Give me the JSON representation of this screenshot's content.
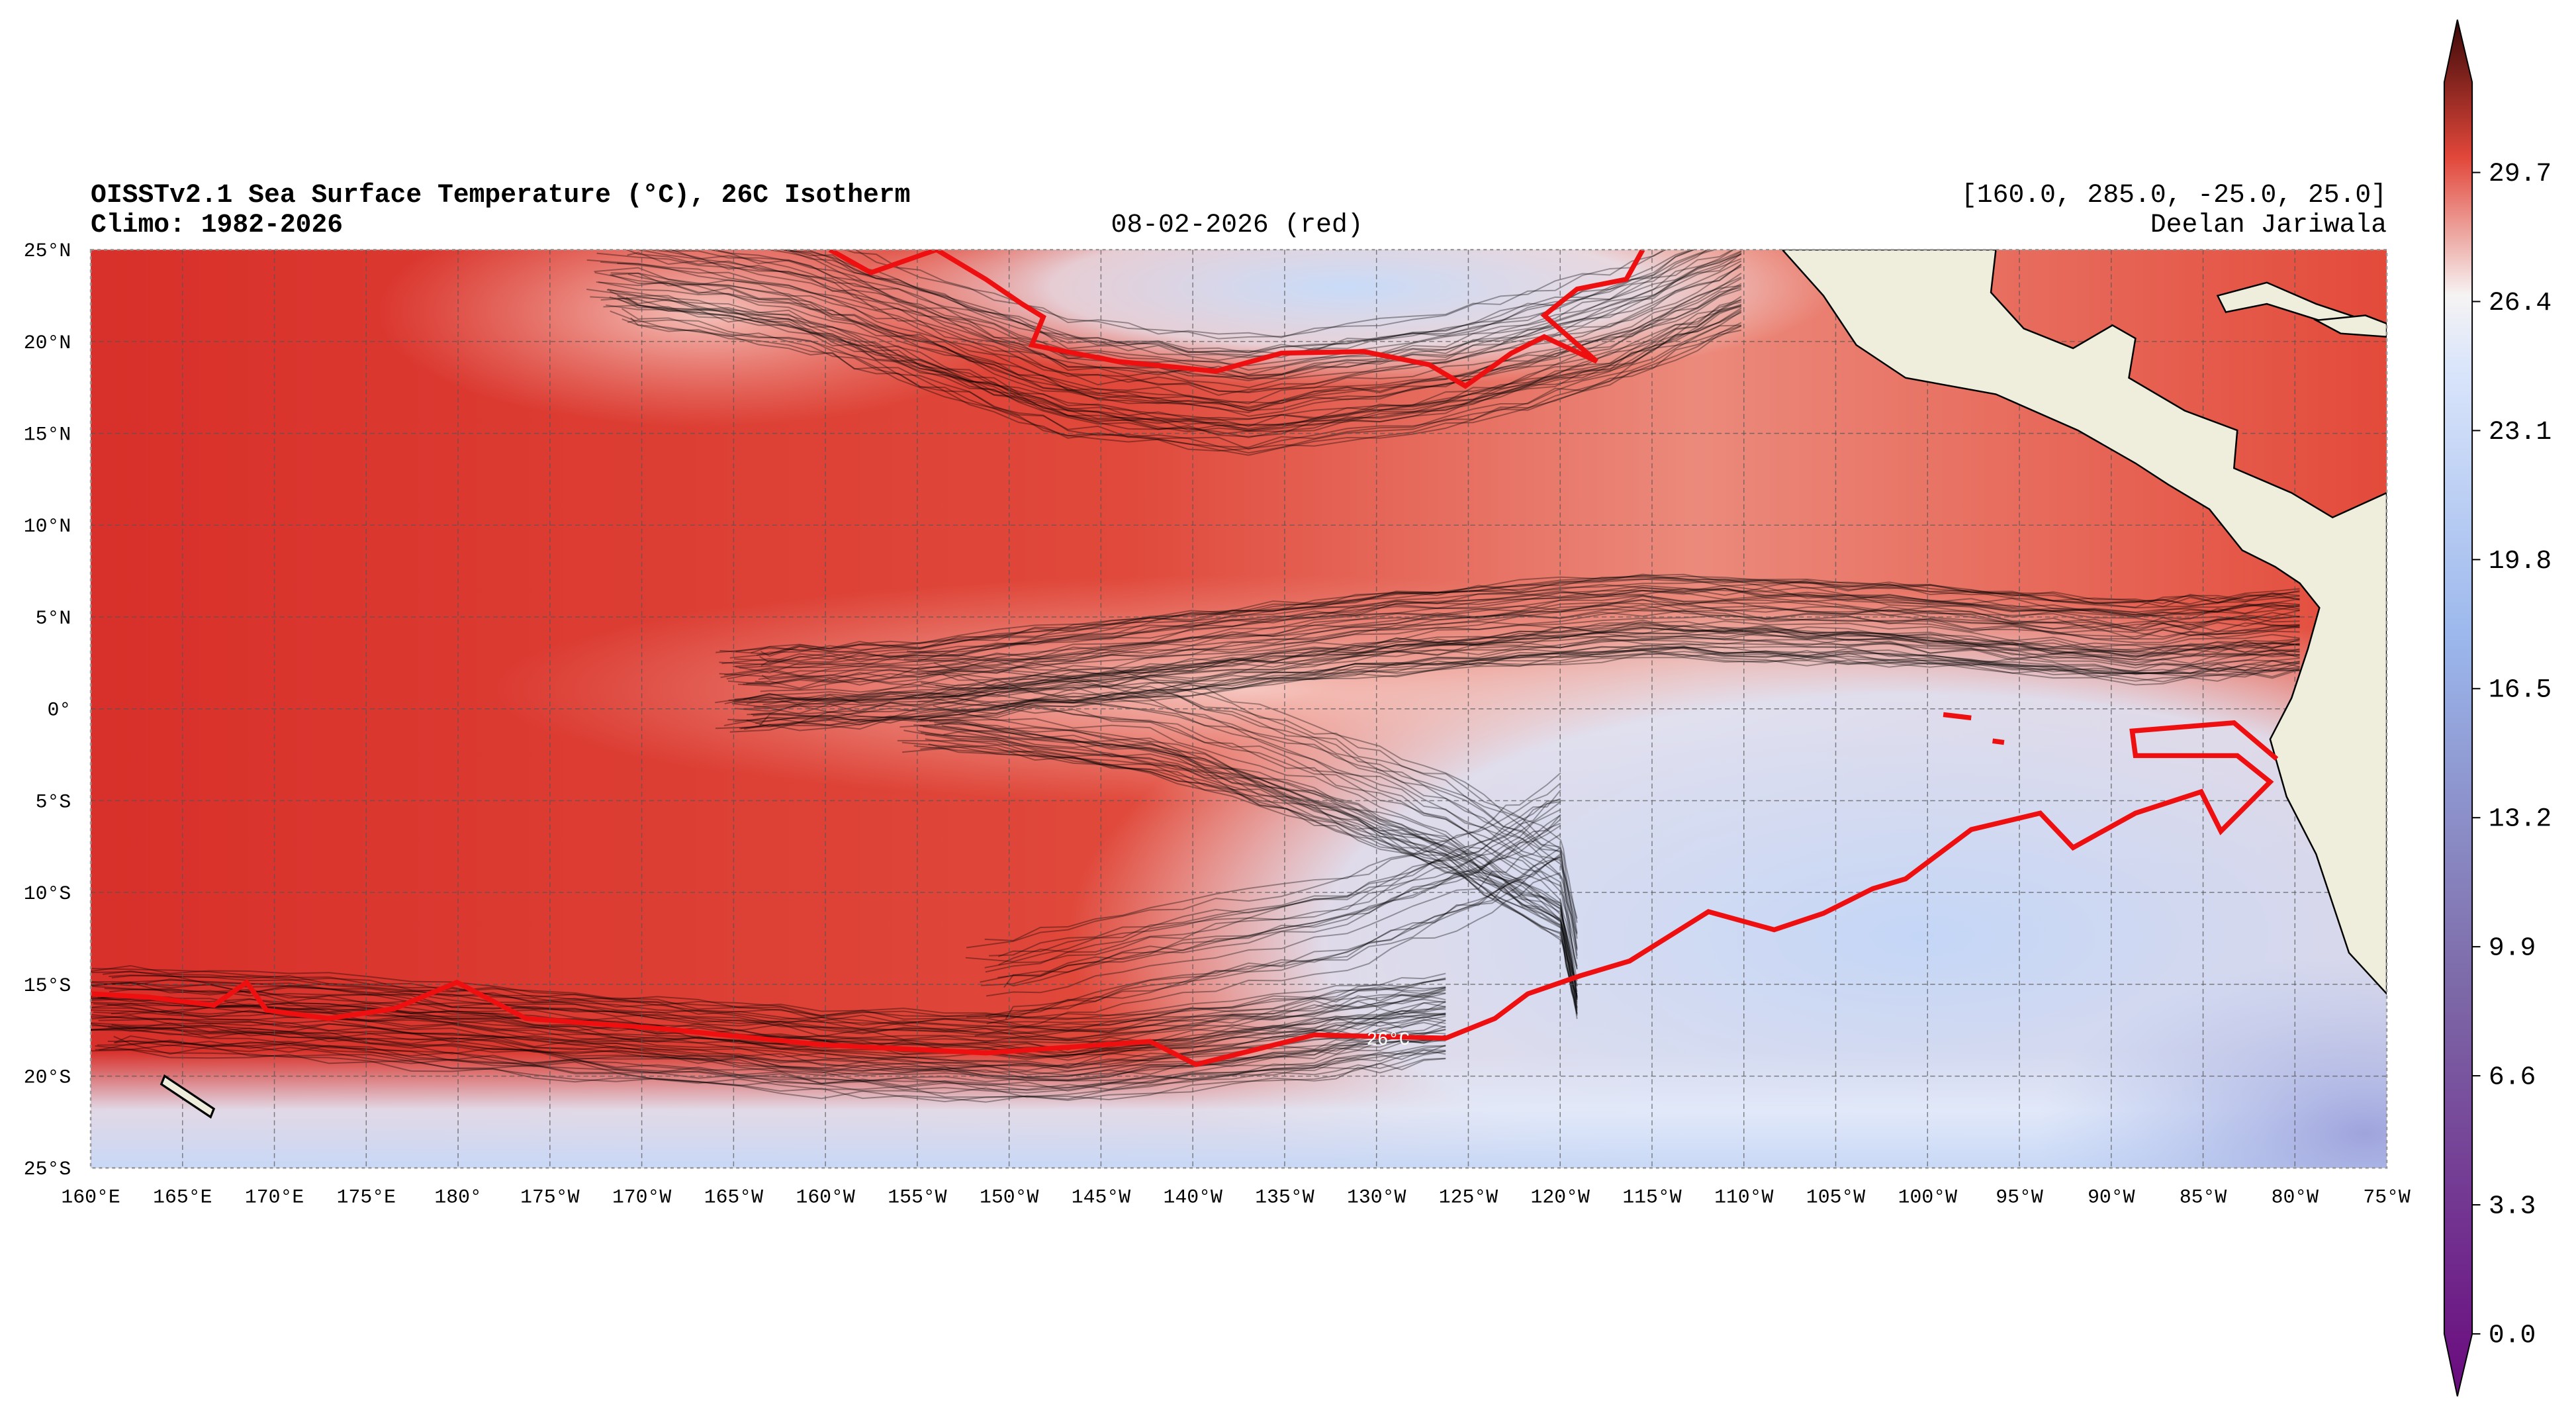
{
  "header": {
    "title": "OISSTv2.1 Sea Surface Temperature (°C), 26C Isotherm",
    "subtitle": "Climo: 1982-2026",
    "date": "08-02-2026 (red)",
    "extent": "[160.0, 285.0, -25.0, 25.0]",
    "author": "Deelan Jariwala"
  },
  "map": {
    "lat_labels": [
      "25°N",
      "20°N",
      "15°N",
      "10°N",
      "5°N",
      "0°",
      "5°S",
      "10°S",
      "15°S",
      "20°S",
      "25°S"
    ],
    "lon_labels": [
      "160°E",
      "165°E",
      "170°E",
      "175°E",
      "180°",
      "175°W",
      "170°W",
      "165°W",
      "160°W",
      "155°W",
      "150°W",
      "145°W",
      "140°W",
      "135°W",
      "130°W",
      "125°W",
      "120°W",
      "115°W",
      "110°W",
      "105°W",
      "100°W",
      "95°W",
      "90°W",
      "85°W",
      "80°W",
      "75°W"
    ],
    "isotherm_label": "26°C"
  },
  "colorbar": {
    "ticks": [
      "0.0",
      "3.3",
      "6.6",
      "9.9",
      "13.2",
      "16.5",
      "19.8",
      "23.1",
      "26.4",
      "29.7"
    ]
  }
}
